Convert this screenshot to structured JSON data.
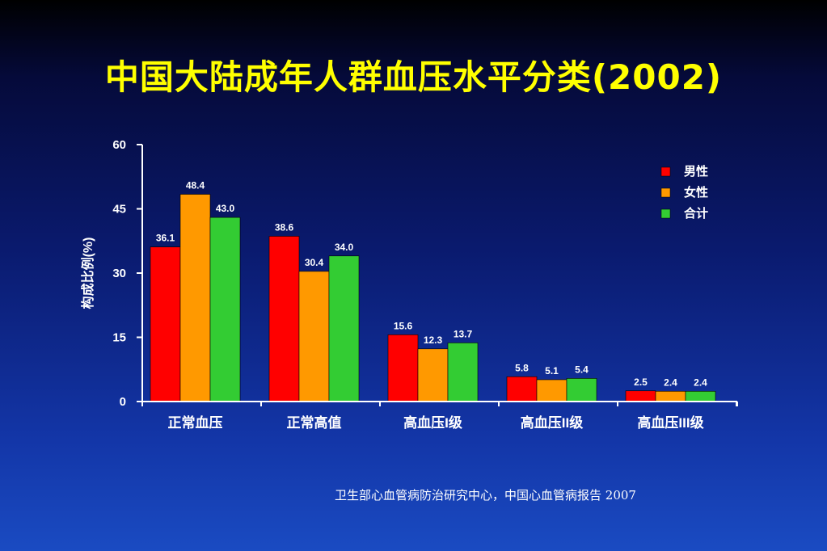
{
  "slide": {
    "title": "中国大陆成年人群血压水平分类(2002)",
    "source": "卫生部心血管病防治研究中心，中国心血管病报告 2007"
  },
  "colors": {
    "male": "#ff0000",
    "female": "#ff9900",
    "total": "#33cc33",
    "title": "#ffff00",
    "axis": "#ffffff"
  },
  "chart_data": {
    "type": "bar",
    "title": "",
    "ylabel": "构成比例(%)",
    "xlabel": "",
    "ylim": [
      0,
      60
    ],
    "yticks": [
      0,
      15,
      30,
      45,
      60
    ],
    "grid": false,
    "legend_position": "top-right",
    "categories": [
      "正常血压",
      "正常高值",
      "高血压I级",
      "高血压II级",
      "高血压III级"
    ],
    "series": [
      {
        "name": "男性",
        "color": "#ff0000",
        "values": [
          36.1,
          38.6,
          15.6,
          5.8,
          2.5
        ],
        "labels": [
          "36.1",
          "38.6",
          "15.6",
          "5.8",
          "2.5"
        ]
      },
      {
        "name": "女性",
        "color": "#ff9900",
        "values": [
          48.4,
          30.4,
          12.3,
          5.1,
          2.4
        ],
        "labels": [
          "48.4",
          "30.4",
          "12.3",
          "5.1",
          "2.4"
        ]
      },
      {
        "name": "合计",
        "color": "#33cc33",
        "values": [
          43.0,
          34.0,
          13.7,
          5.4,
          2.4
        ],
        "labels": [
          "43.0",
          "34.0",
          "13.7",
          "5.4",
          "2.4"
        ]
      }
    ]
  }
}
